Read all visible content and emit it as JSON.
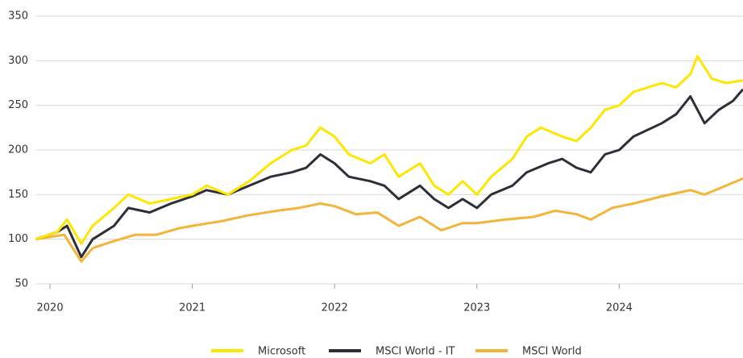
{
  "chart_data": {
    "type": "line",
    "xlim": [
      2019.9,
      2024.87
    ],
    "xticks": [
      2020,
      2021,
      2022,
      2023,
      2024
    ],
    "ylim": [
      50,
      350
    ],
    "yticks": [
      50,
      100,
      150,
      200,
      250,
      300,
      350
    ],
    "grid": true,
    "legend": "bottom",
    "series": [
      {
        "name": "Microsoft",
        "color": "#ffe600",
        "x": [
          2019.9,
          2020.05,
          2020.12,
          2020.22,
          2020.3,
          2020.45,
          2020.55,
          2020.7,
          2020.85,
          2021.0,
          2021.1,
          2021.25,
          2021.4,
          2021.55,
          2021.7,
          2021.8,
          2021.9,
          2022.0,
          2022.1,
          2022.25,
          2022.35,
          2022.45,
          2022.6,
          2022.7,
          2022.8,
          2022.9,
          2023.0,
          2023.1,
          2023.25,
          2023.35,
          2023.45,
          2023.6,
          2023.7,
          2023.8,
          2023.9,
          2024.0,
          2024.1,
          2024.3,
          2024.4,
          2024.5,
          2024.55,
          2024.65,
          2024.75,
          2024.87
        ],
        "values": [
          100,
          108,
          122,
          95,
          115,
          135,
          150,
          140,
          145,
          150,
          160,
          150,
          165,
          185,
          200,
          205,
          225,
          215,
          195,
          185,
          195,
          170,
          185,
          160,
          150,
          165,
          150,
          170,
          190,
          215,
          225,
          215,
          210,
          225,
          245,
          250,
          265,
          275,
          270,
          285,
          305,
          280,
          275,
          278
        ]
      },
      {
        "name": "MSCI World - IT",
        "color": "#2e2e38",
        "x": [
          2019.9,
          2020.05,
          2020.12,
          2020.22,
          2020.3,
          2020.45,
          2020.55,
          2020.7,
          2020.85,
          2021.0,
          2021.1,
          2021.25,
          2021.4,
          2021.55,
          2021.7,
          2021.8,
          2021.9,
          2022.0,
          2022.1,
          2022.25,
          2022.35,
          2022.45,
          2022.6,
          2022.7,
          2022.8,
          2022.9,
          2023.0,
          2023.1,
          2023.25,
          2023.35,
          2023.5,
          2023.6,
          2023.7,
          2023.8,
          2023.9,
          2024.0,
          2024.1,
          2024.3,
          2024.4,
          2024.5,
          2024.6,
          2024.7,
          2024.8,
          2024.87
        ],
        "values": [
          100,
          108,
          115,
          80,
          100,
          115,
          135,
          130,
          140,
          148,
          155,
          150,
          160,
          170,
          175,
          180,
          195,
          185,
          170,
          165,
          160,
          145,
          160,
          145,
          135,
          145,
          135,
          150,
          160,
          175,
          185,
          190,
          180,
          175,
          195,
          200,
          215,
          230,
          240,
          260,
          230,
          245,
          255,
          268
        ]
      },
      {
        "name": "MSCI World",
        "color": "#f2b53a",
        "x": [
          2019.9,
          2020.1,
          2020.22,
          2020.3,
          2020.45,
          2020.6,
          2020.75,
          2020.9,
          2021.0,
          2021.2,
          2021.4,
          2021.6,
          2021.75,
          2021.9,
          2022.0,
          2022.15,
          2022.3,
          2022.45,
          2022.6,
          2022.75,
          2022.9,
          2023.0,
          2023.2,
          2023.4,
          2023.55,
          2023.7,
          2023.8,
          2023.95,
          2024.1,
          2024.3,
          2024.5,
          2024.6,
          2024.75,
          2024.87
        ],
        "values": [
          100,
          105,
          75,
          90,
          98,
          105,
          105,
          112,
          115,
          120,
          127,
          132,
          135,
          140,
          137,
          128,
          130,
          115,
          125,
          110,
          118,
          118,
          122,
          125,
          132,
          128,
          122,
          135,
          140,
          148,
          155,
          150,
          160,
          168
        ]
      }
    ]
  }
}
